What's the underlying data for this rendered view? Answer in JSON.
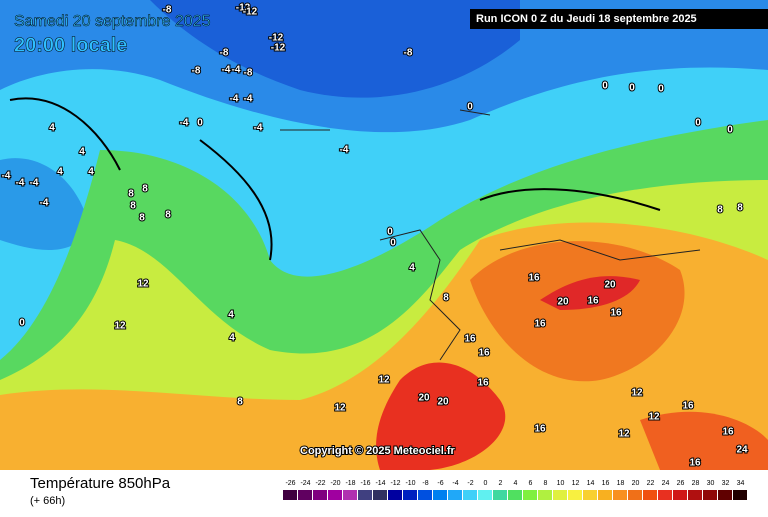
{
  "header": {
    "date": "Samedi 20 septembre 2025",
    "time": "20:00 locale",
    "run": "Run ICON 0 Z du Jeudi 18 septembre 2025"
  },
  "copyright": "Copyright © 2025 Meteociel.fr",
  "footer": {
    "title": "Température 850hPa",
    "lead": "(+ 66h)"
  },
  "contour_labels": [
    -12,
    -12,
    -8,
    -12,
    -12,
    -8,
    -8,
    -8,
    -4,
    -4,
    -8,
    -4,
    -4,
    -4,
    -4,
    -4,
    0,
    -4,
    -4,
    -4,
    -4,
    0,
    4,
    4,
    4,
    0,
    0,
    0,
    0,
    0,
    8,
    8,
    8,
    8,
    8,
    12,
    12,
    4,
    4,
    0,
    4,
    0,
    0,
    4,
    8,
    16,
    20,
    20,
    16,
    16,
    16,
    16,
    12,
    12,
    8,
    16,
    20,
    20,
    16,
    12,
    12,
    12,
    16,
    16,
    24,
    16,
    16,
    8,
    8
  ],
  "scale": {
    "values": [
      -26,
      -24,
      -22,
      -20,
      -18,
      -16,
      -14,
      -12,
      -10,
      -8,
      -6,
      -4,
      -2,
      0,
      2,
      4,
      6,
      8,
      10,
      12,
      14,
      16,
      18,
      20,
      22,
      24,
      26,
      28,
      30,
      32,
      34
    ],
    "colors": [
      "#400040",
      "#600060",
      "#800080",
      "#a000a0",
      "#b030b0",
      "#404080",
      "#303060",
      "#0000a0",
      "#0020c0",
      "#0050e0",
      "#0080f0",
      "#20a8f8",
      "#40d0f8",
      "#60f0f0",
      "#40d8a0",
      "#50e060",
      "#80f040",
      "#b0f040",
      "#e0f040",
      "#f8f040",
      "#f8d030",
      "#f8b020",
      "#f89020",
      "#f07018",
      "#f05010",
      "#e83020",
      "#d01818",
      "#b01010",
      "#900808",
      "#600000",
      "#200000"
    ]
  }
}
